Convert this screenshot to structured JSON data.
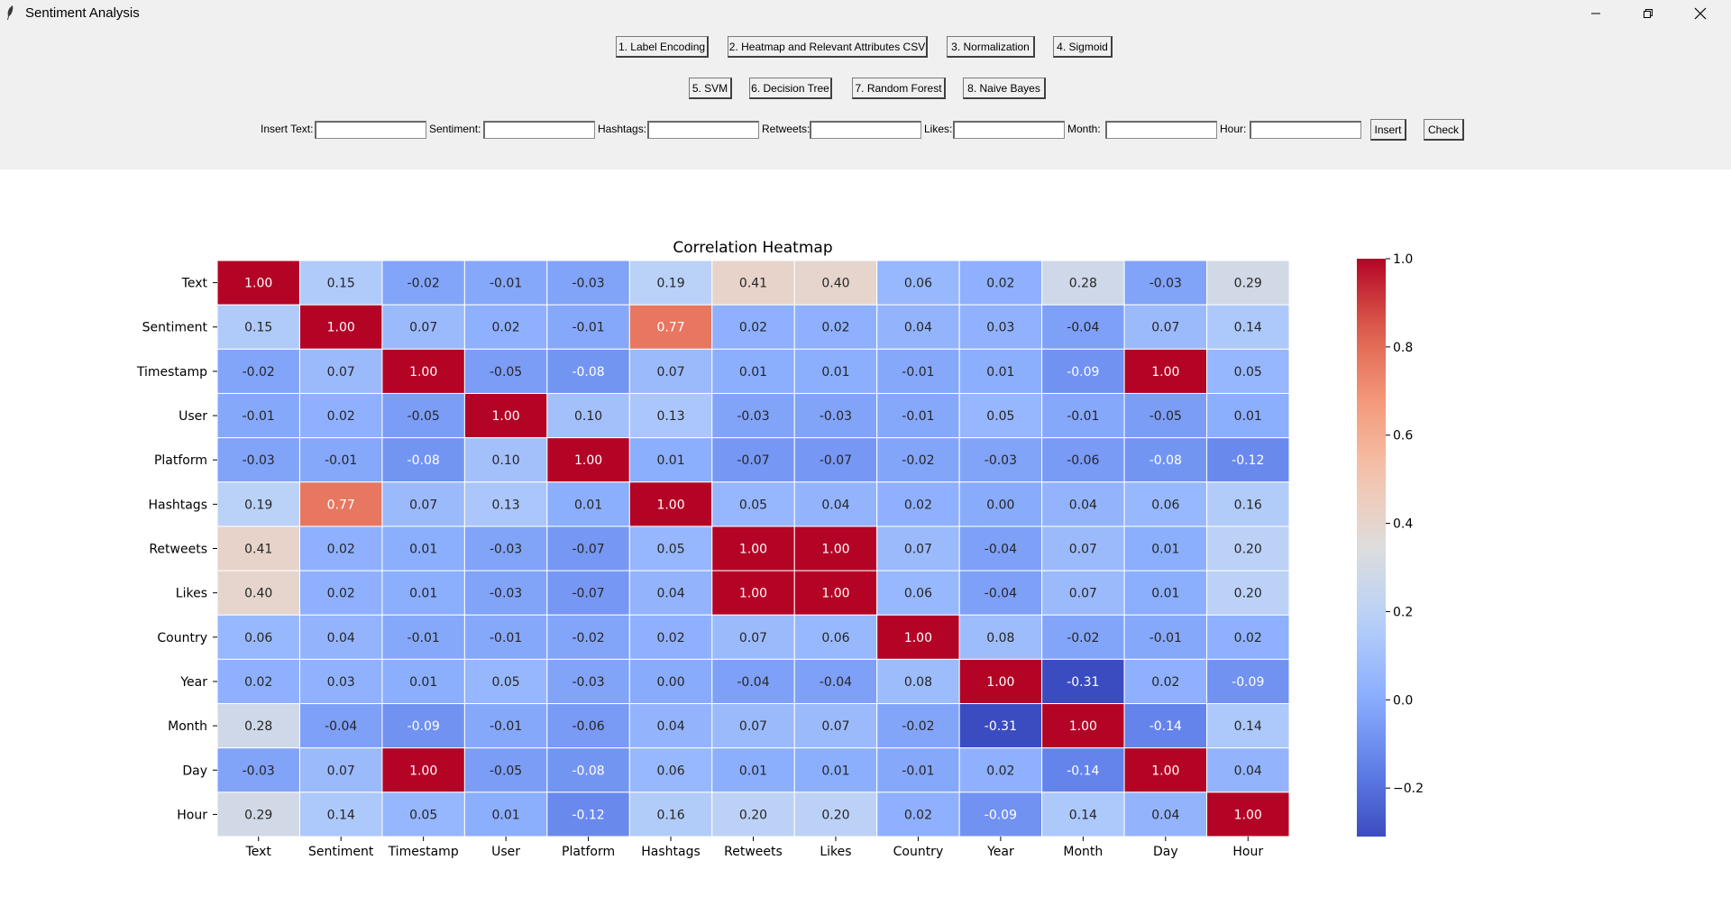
{
  "window": {
    "title": "Sentiment Analysis",
    "icon": "feather-icon"
  },
  "toolbar": {
    "row1": [
      {
        "label": "1. Label Encoding"
      },
      {
        "label": "2. Heatmap and Relevant Attributes CSV"
      },
      {
        "label": "3. Normalization"
      },
      {
        "label": "4. Sigmoid"
      }
    ],
    "row2": [
      {
        "label": "5. SVM"
      },
      {
        "label": "6. Decision Tree"
      },
      {
        "label": "7. Random Forest"
      },
      {
        "label": "8. Naive Bayes"
      }
    ]
  },
  "form": {
    "fields": [
      {
        "label": "Insert Text:",
        "value": ""
      },
      {
        "label": "Sentiment:",
        "value": ""
      },
      {
        "label": "Hashtags:",
        "value": ""
      },
      {
        "label": "Retweets:",
        "value": ""
      },
      {
        "label": "Likes:",
        "value": ""
      },
      {
        "label": "Month:",
        "value": ""
      },
      {
        "label": "Hour:",
        "value": ""
      }
    ],
    "insert_label": "Insert",
    "check_label": "Check"
  },
  "chart_data": {
    "type": "heatmap",
    "title": "Correlation Heatmap",
    "labels": [
      "Text",
      "Sentiment",
      "Timestamp",
      "User",
      "Platform",
      "Hashtags",
      "Retweets",
      "Likes",
      "Country",
      "Year",
      "Month",
      "Day",
      "Hour"
    ],
    "values": [
      [
        1.0,
        0.15,
        -0.02,
        -0.01,
        -0.03,
        0.19,
        0.41,
        0.4,
        0.06,
        0.02,
        0.28,
        -0.03,
        0.29
      ],
      [
        0.15,
        1.0,
        0.07,
        0.02,
        -0.01,
        0.77,
        0.02,
        0.02,
        0.04,
        0.03,
        -0.04,
        0.07,
        0.14
      ],
      [
        -0.02,
        0.07,
        1.0,
        -0.05,
        -0.08,
        0.07,
        0.01,
        0.01,
        -0.01,
        0.01,
        -0.09,
        1.0,
        0.05
      ],
      [
        -0.01,
        0.02,
        -0.05,
        1.0,
        0.1,
        0.13,
        -0.03,
        -0.03,
        -0.01,
        0.05,
        -0.01,
        -0.05,
        0.01
      ],
      [
        -0.03,
        -0.01,
        -0.08,
        0.1,
        1.0,
        0.01,
        -0.07,
        -0.07,
        -0.02,
        -0.03,
        -0.06,
        -0.08,
        -0.12
      ],
      [
        0.19,
        0.77,
        0.07,
        0.13,
        0.01,
        1.0,
        0.05,
        0.04,
        0.02,
        0.0,
        0.04,
        0.06,
        0.16
      ],
      [
        0.41,
        0.02,
        0.01,
        -0.03,
        -0.07,
        0.05,
        1.0,
        1.0,
        0.07,
        -0.04,
        0.07,
        0.01,
        0.2
      ],
      [
        0.4,
        0.02,
        0.01,
        -0.03,
        -0.07,
        0.04,
        1.0,
        1.0,
        0.06,
        -0.04,
        0.07,
        0.01,
        0.2
      ],
      [
        0.06,
        0.04,
        -0.01,
        -0.01,
        -0.02,
        0.02,
        0.07,
        0.06,
        1.0,
        0.08,
        -0.02,
        -0.01,
        0.02
      ],
      [
        0.02,
        0.03,
        0.01,
        0.05,
        -0.03,
        0.0,
        -0.04,
        -0.04,
        0.08,
        1.0,
        -0.31,
        0.02,
        -0.09
      ],
      [
        0.28,
        -0.04,
        -0.09,
        -0.01,
        -0.06,
        0.04,
        0.07,
        0.07,
        -0.02,
        -0.31,
        1.0,
        -0.14,
        0.14
      ],
      [
        -0.03,
        0.07,
        1.0,
        -0.05,
        -0.08,
        0.06,
        0.01,
        0.01,
        -0.01,
        0.02,
        -0.14,
        1.0,
        0.04
      ],
      [
        0.29,
        0.14,
        0.05,
        0.01,
        -0.12,
        0.16,
        0.2,
        0.2,
        0.02,
        -0.09,
        0.14,
        0.04,
        1.0
      ]
    ],
    "vmin": -0.31,
    "vmax": 1.0,
    "colormap": "coolwarm",
    "colorbar_ticks": [
      {
        "value": 1.0,
        "label": "1.0"
      },
      {
        "value": 0.8,
        "label": "0.8"
      },
      {
        "value": 0.6,
        "label": "0.6"
      },
      {
        "value": 0.4,
        "label": "0.4"
      },
      {
        "value": 0.2,
        "label": "0.2"
      },
      {
        "value": 0.0,
        "label": "0.0"
      },
      {
        "value": -0.2,
        "label": "−0.2"
      }
    ]
  }
}
